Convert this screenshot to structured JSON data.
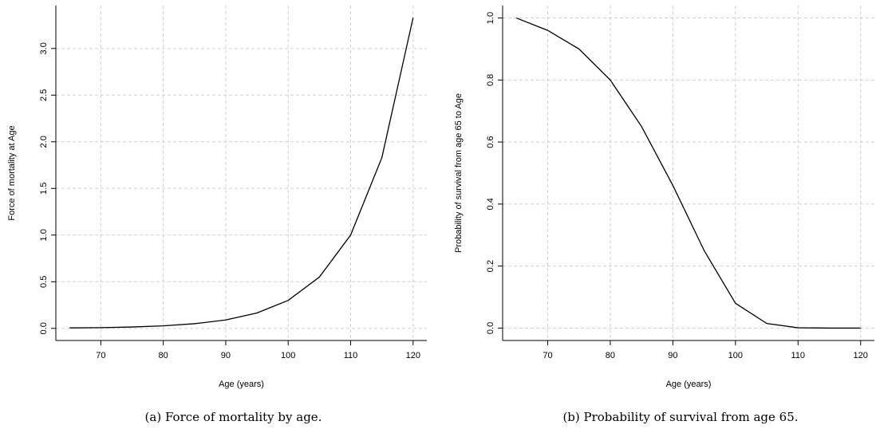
{
  "chart_data": [
    {
      "type": "line",
      "caption": "(a) Force of mortality by age.",
      "xlabel": "Age (years)",
      "ylabel": "Force of mortality at Age",
      "x": [
        65,
        70,
        75,
        80,
        85,
        90,
        95,
        100,
        105,
        110,
        115,
        120
      ],
      "values": [
        0.005,
        0.008,
        0.015,
        0.027,
        0.05,
        0.09,
        0.165,
        0.3,
        0.55,
        1.0,
        1.83,
        3.33
      ],
      "color": "#000000",
      "grid": true,
      "xlim": [
        62.8,
        122.2
      ],
      "xticks": [
        70,
        80,
        90,
        100,
        110,
        120
      ],
      "ylim": [
        -0.13,
        3.46
      ],
      "yticks": [
        {
          "value": 0,
          "label": "0.0"
        },
        0.5,
        {
          "value": 1,
          "label": "1.0"
        },
        1.5,
        {
          "value": 2,
          "label": "2.0"
        },
        2.5,
        {
          "value": 3,
          "label": "3.0"
        }
      ]
    },
    {
      "type": "line",
      "caption": "(b) Probability of survival from age 65.",
      "xlabel": "Age (years)",
      "ylabel": "Probability of survival from age 65 to Age",
      "x": [
        65,
        70,
        75,
        80,
        85,
        90,
        95,
        100,
        105,
        110,
        115,
        120
      ],
      "values": [
        1.0,
        0.96,
        0.9,
        0.8,
        0.65,
        0.46,
        0.25,
        0.08,
        0.015,
        0.001,
        0,
        0
      ],
      "color": "#000000",
      "grid": true,
      "xlim": [
        62.8,
        122.2
      ],
      "xticks": [
        70,
        80,
        90,
        100,
        110,
        120
      ],
      "ylim": [
        -0.04,
        1.04
      ],
      "yticks": [
        {
          "value": 0,
          "label": "0.0"
        },
        0.2,
        0.4,
        0.6,
        0.8,
        {
          "value": 1,
          "label": "1.0"
        }
      ]
    }
  ]
}
